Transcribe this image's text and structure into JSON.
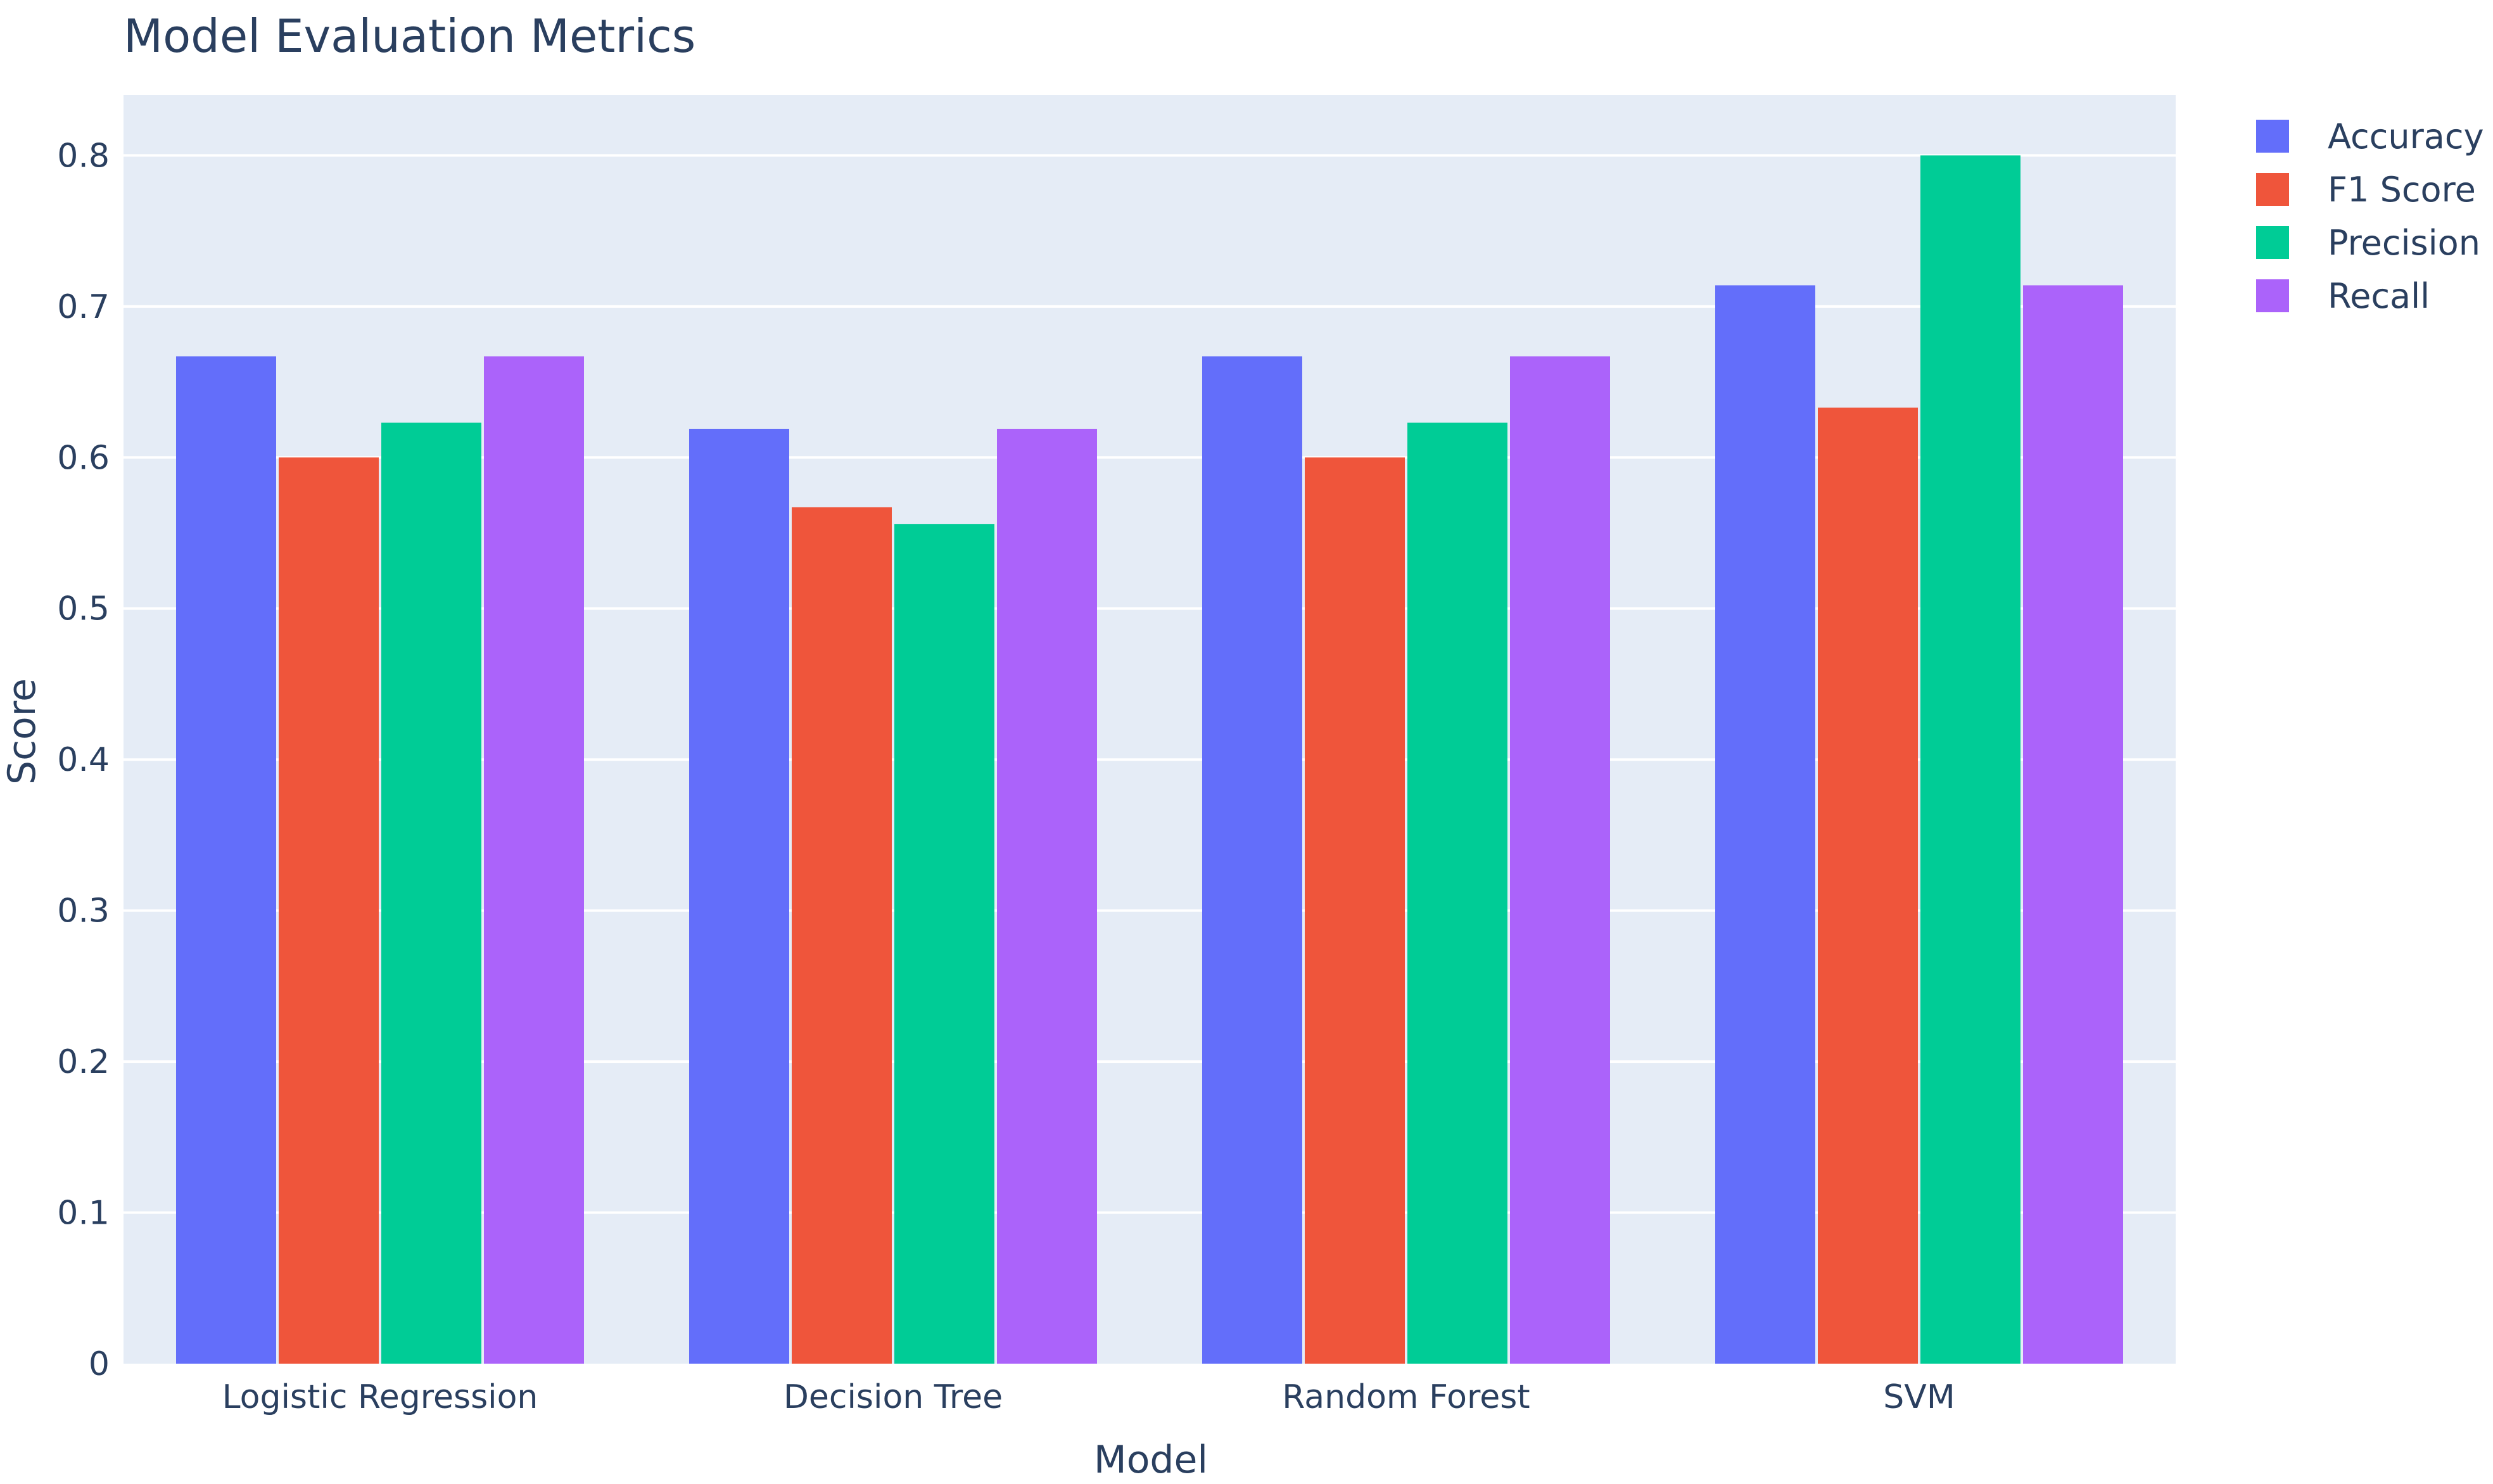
{
  "chart_data": {
    "type": "bar",
    "title": "Model Evaluation Metrics",
    "xlabel": "Model",
    "ylabel": "Score",
    "categories": [
      "Logistic Regression",
      "Decision Tree",
      "Random Forest",
      "SVM"
    ],
    "series": [
      {
        "name": "Accuracy",
        "color": "#636efa",
        "values": [
          0.667,
          0.619,
          0.667,
          0.714
        ]
      },
      {
        "name": "F1 Score",
        "color": "#ef553b",
        "values": [
          0.6,
          0.567,
          0.6,
          0.633
        ]
      },
      {
        "name": "Precision",
        "color": "#00cc96",
        "values": [
          0.623,
          0.556,
          0.623,
          0.8
        ]
      },
      {
        "name": "Recall",
        "color": "#ab63fa",
        "values": [
          0.667,
          0.619,
          0.667,
          0.714
        ]
      }
    ],
    "ylim": [
      0,
      0.84
    ],
    "yticks": [
      0,
      0.1,
      0.2,
      0.3,
      0.4,
      0.5,
      0.6,
      0.7,
      0.8
    ],
    "ytick_labels": [
      "0",
      "0.1",
      "0.2",
      "0.3",
      "0.4",
      "0.5",
      "0.6",
      "0.7",
      "0.8"
    ],
    "grid": true,
    "legend_position": "top-right",
    "plot_background": "#e5ecf6"
  }
}
